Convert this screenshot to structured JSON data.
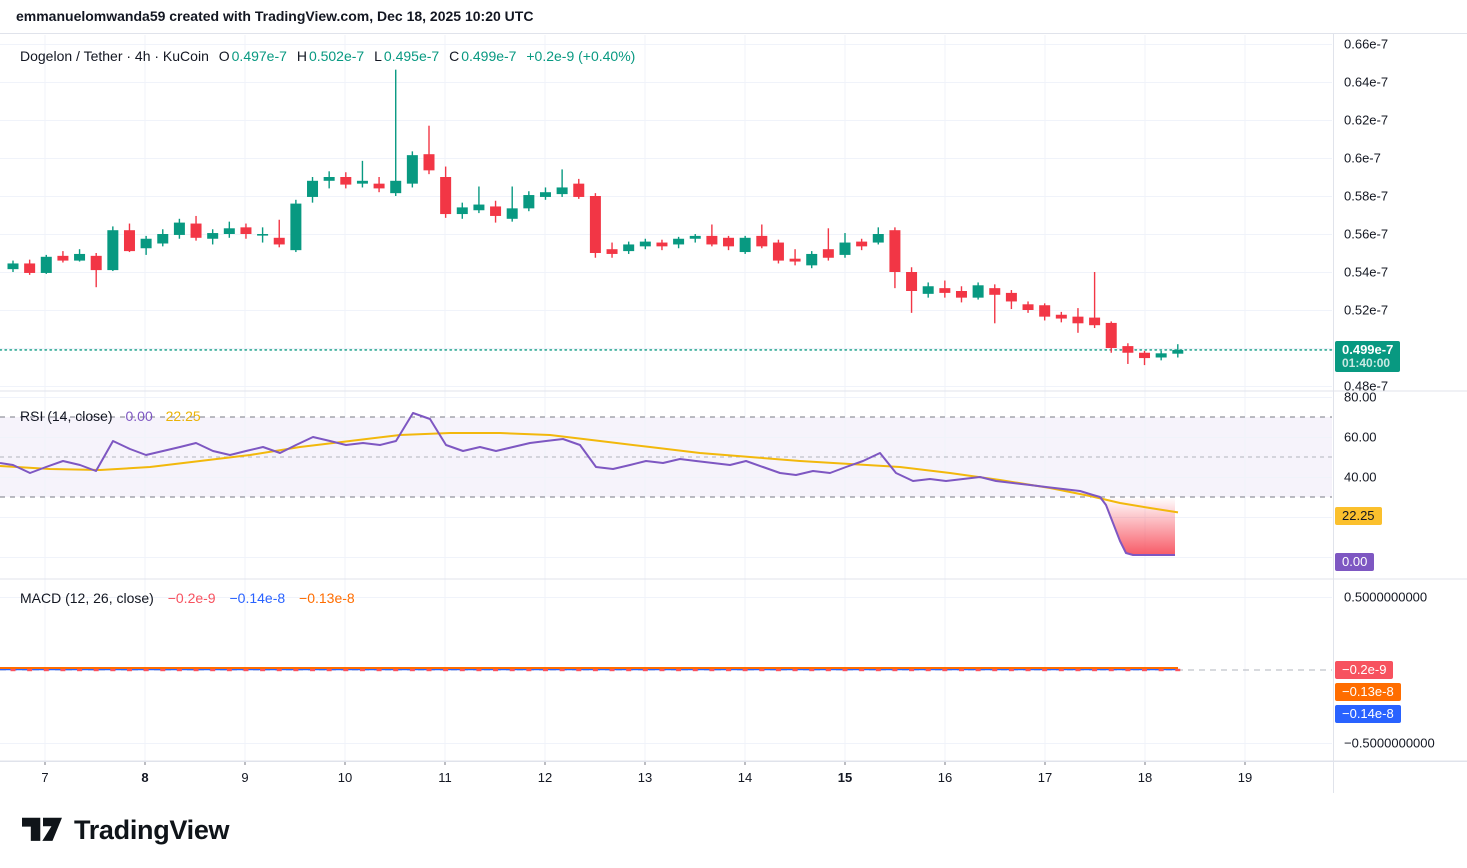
{
  "header": {
    "attribution": "emmanuelomwanda59 created with TradingView.com, Dec 18, 2025 10:20 UTC"
  },
  "symbol_legend": {
    "title": "Dogelon / Tether · 4h · KuCoin",
    "o_label": "O",
    "o_value": "0.497e-7",
    "h_label": "H",
    "h_value": "0.502e-7",
    "l_label": "L",
    "l_value": "0.495e-7",
    "c_label": "C",
    "c_value": "0.499e-7",
    "change": "+0.2e-9 (+0.40%)"
  },
  "rsi_legend": {
    "title": "RSI (14, close)",
    "value": "0.00",
    "ma_value": "22.25"
  },
  "macd_legend": {
    "title": "MACD (12, 26, close)",
    "hist_value": "−0.2e-9",
    "macd_value": "−0.14e-8",
    "signal_value": "−0.13e-8"
  },
  "badges": {
    "price": {
      "text": "0.499e-7",
      "countdown": "01:40:00"
    },
    "rsi_ma": "22.25",
    "rsi": "0.00",
    "macd_hist": "−0.2e-9",
    "macd_signal": "−0.13e-8",
    "macd_line": "−0.14e-8"
  },
  "footer": {
    "logo_text": "TradingView"
  },
  "colors": {
    "up": "#089981",
    "down": "#f23645",
    "accent_teal": "#089981",
    "rsi_line": "#7e57c2",
    "rsi_ma": "#f2b80c",
    "rsi_badge_bg": "#fbc02d",
    "rsi_value_badge_bg": "#7e57c2",
    "oversold_fill": "#f7525f",
    "macd_line": "#2962ff",
    "macd_signal": "#ff6d00",
    "macd_hist": "#f7525f",
    "hist_badge_bg": "#f7525f",
    "signal_badge_bg": "#ff6d00",
    "line_badge_bg": "#2962ff",
    "grid": "#f0f3fa",
    "border": "#e0e3eb",
    "text": "#131722",
    "dashed_level": "#787b86",
    "mid_level": "#b2b5be"
  },
  "chart_data": {
    "type": "candlestick",
    "title": "Dogelon / Tether · 4h · KuCoin",
    "interval": "4h",
    "price_unit": "e-7",
    "ohlc_current": {
      "open": "0.497e-7",
      "high": "0.502e-7",
      "low": "0.495e-7",
      "close": "0.499e-7",
      "change": "+0.2e-9",
      "change_pct": "+0.40%"
    },
    "price_axis": {
      "min": 0.48,
      "max": 0.66,
      "labels": [
        "0.66e-7",
        "0.64e-7",
        "0.62e-7",
        "0.6e-7",
        "0.58e-7",
        "0.56e-7",
        "0.54e-7",
        "0.52e-7",
        "0.48e-7"
      ]
    },
    "time_axis": {
      "labels": [
        {
          "text": "7",
          "bold": false
        },
        {
          "text": "8",
          "bold": true
        },
        {
          "text": "9",
          "bold": false
        },
        {
          "text": "10",
          "bold": false
        },
        {
          "text": "11",
          "bold": false
        },
        {
          "text": "12",
          "bold": false
        },
        {
          "text": "13",
          "bold": false
        },
        {
          "text": "14",
          "bold": false
        },
        {
          "text": "15",
          "bold": true
        },
        {
          "text": "16",
          "bold": false
        },
        {
          "text": "17",
          "bold": false
        },
        {
          "text": "18",
          "bold": false
        },
        {
          "text": "19",
          "bold": false
        }
      ]
    },
    "candles": [
      [
        0.5415,
        0.546,
        0.54,
        0.5445
      ],
      [
        0.5445,
        0.5465,
        0.5385,
        0.5395
      ],
      [
        0.5395,
        0.549,
        0.539,
        0.548
      ],
      [
        0.5485,
        0.551,
        0.545,
        0.546
      ],
      [
        0.546,
        0.552,
        0.5455,
        0.5495
      ],
      [
        0.5485,
        0.55,
        0.532,
        0.541
      ],
      [
        0.541,
        0.564,
        0.5405,
        0.562
      ],
      [
        0.562,
        0.5655,
        0.5505,
        0.551
      ],
      [
        0.5525,
        0.559,
        0.549,
        0.5575
      ],
      [
        0.555,
        0.5625,
        0.5535,
        0.56
      ],
      [
        0.5595,
        0.568,
        0.5575,
        0.566
      ],
      [
        0.5655,
        0.5695,
        0.5565,
        0.558
      ],
      [
        0.5575,
        0.5625,
        0.5545,
        0.5605
      ],
      [
        0.56,
        0.5665,
        0.558,
        0.563
      ],
      [
        0.5635,
        0.5655,
        0.5575,
        0.56
      ],
      [
        0.56,
        0.5635,
        0.5555,
        0.56
      ],
      [
        0.558,
        0.5675,
        0.553,
        0.5545
      ],
      [
        0.5515,
        0.578,
        0.5505,
        0.576
      ],
      [
        0.5795,
        0.59,
        0.5765,
        0.588
      ],
      [
        0.588,
        0.593,
        0.584,
        0.59
      ],
      [
        0.59,
        0.5925,
        0.584,
        0.586
      ],
      [
        0.5865,
        0.5985,
        0.5845,
        0.588
      ],
      [
        0.5865,
        0.59,
        0.582,
        0.584
      ],
      [
        0.5815,
        0.6465,
        0.58,
        0.588
      ],
      [
        0.5865,
        0.6035,
        0.5845,
        0.6015
      ],
      [
        0.602,
        0.617,
        0.5915,
        0.5935
      ],
      [
        0.59,
        0.5955,
        0.5685,
        0.5705
      ],
      [
        0.5705,
        0.5765,
        0.568,
        0.574
      ],
      [
        0.5725,
        0.585,
        0.571,
        0.5755
      ],
      [
        0.5745,
        0.5775,
        0.566,
        0.5695
      ],
      [
        0.568,
        0.585,
        0.5665,
        0.5735
      ],
      [
        0.5735,
        0.5825,
        0.572,
        0.5805
      ],
      [
        0.5795,
        0.5845,
        0.578,
        0.582
      ],
      [
        0.581,
        0.594,
        0.5795,
        0.5845
      ],
      [
        0.5865,
        0.589,
        0.5785,
        0.5795
      ],
      [
        0.58,
        0.5815,
        0.5475,
        0.55
      ],
      [
        0.552,
        0.5555,
        0.5475,
        0.5495
      ],
      [
        0.551,
        0.556,
        0.5495,
        0.5545
      ],
      [
        0.5535,
        0.5575,
        0.552,
        0.556
      ],
      [
        0.5555,
        0.557,
        0.5515,
        0.5535
      ],
      [
        0.5545,
        0.5585,
        0.5525,
        0.5575
      ],
      [
        0.5575,
        0.56,
        0.5555,
        0.559
      ],
      [
        0.559,
        0.565,
        0.5535,
        0.5545
      ],
      [
        0.558,
        0.559,
        0.5515,
        0.5535
      ],
      [
        0.5505,
        0.559,
        0.5495,
        0.558
      ],
      [
        0.559,
        0.565,
        0.5525,
        0.5535
      ],
      [
        0.5555,
        0.557,
        0.5445,
        0.546
      ],
      [
        0.547,
        0.552,
        0.5435,
        0.5455
      ],
      [
        0.5435,
        0.551,
        0.542,
        0.5495
      ],
      [
        0.552,
        0.563,
        0.546,
        0.5475
      ],
      [
        0.549,
        0.5605,
        0.5475,
        0.5555
      ],
      [
        0.556,
        0.5575,
        0.5515,
        0.5535
      ],
      [
        0.5555,
        0.5635,
        0.5545,
        0.56
      ],
      [
        0.562,
        0.5635,
        0.5315,
        0.54
      ],
      [
        0.54,
        0.5425,
        0.5185,
        0.53
      ],
      [
        0.5285,
        0.5345,
        0.5265,
        0.5325
      ],
      [
        0.5315,
        0.5355,
        0.5265,
        0.529
      ],
      [
        0.53,
        0.5325,
        0.524,
        0.5265
      ],
      [
        0.5265,
        0.5345,
        0.5255,
        0.533
      ],
      [
        0.5315,
        0.5335,
        0.513,
        0.528
      ],
      [
        0.529,
        0.5305,
        0.5205,
        0.5245
      ],
      [
        0.523,
        0.5245,
        0.5185,
        0.52
      ],
      [
        0.5225,
        0.5235,
        0.5145,
        0.5165
      ],
      [
        0.5175,
        0.519,
        0.5135,
        0.5155
      ],
      [
        0.5165,
        0.521,
        0.508,
        0.513
      ],
      [
        0.516,
        0.54,
        0.5105,
        0.512
      ],
      [
        0.5132,
        0.514,
        0.4975,
        0.5
      ],
      [
        0.501,
        0.5025,
        0.4916,
        0.4975
      ],
      [
        0.4975,
        0.4985,
        0.491,
        0.4947
      ],
      [
        0.495,
        0.4985,
        0.4935,
        0.4972
      ],
      [
        0.497,
        0.502,
        0.495,
        0.499
      ]
    ],
    "rsi_panel": {
      "title": "RSI (14, close)",
      "value": 0.0,
      "ma": 22.25,
      "upper_band": 70,
      "middle": 50,
      "lower_band": 30,
      "axis_labels": [
        "80.00",
        "60.00",
        "40.00"
      ],
      "line": [
        [
          0,
          47
        ],
        [
          13,
          46
        ],
        [
          30,
          42
        ],
        [
          46,
          45
        ],
        [
          63,
          48
        ],
        [
          80,
          46
        ],
        [
          96,
          43
        ],
        [
          113,
          58
        ],
        [
          130,
          54
        ],
        [
          146,
          51
        ],
        [
          163,
          53
        ],
        [
          180,
          55
        ],
        [
          196,
          57
        ],
        [
          213,
          53
        ],
        [
          230,
          51
        ],
        [
          246,
          53
        ],
        [
          263,
          55
        ],
        [
          280,
          52
        ],
        [
          296,
          56
        ],
        [
          313,
          60
        ],
        [
          330,
          58
        ],
        [
          346,
          56
        ],
        [
          363,
          57
        ],
        [
          380,
          56
        ],
        [
          396,
          58
        ],
        [
          413,
          72
        ],
        [
          430,
          69
        ],
        [
          446,
          56
        ],
        [
          463,
          53
        ],
        [
          480,
          55
        ],
        [
          496,
          53
        ],
        [
          513,
          55
        ],
        [
          530,
          57
        ],
        [
          546,
          58
        ],
        [
          563,
          59
        ],
        [
          580,
          56
        ],
        [
          596,
          45
        ],
        [
          613,
          44
        ],
        [
          630,
          46
        ],
        [
          646,
          48
        ],
        [
          663,
          47
        ],
        [
          680,
          49
        ],
        [
          696,
          48
        ],
        [
          713,
          47
        ],
        [
          730,
          46
        ],
        [
          746,
          48
        ],
        [
          763,
          45
        ],
        [
          780,
          42
        ],
        [
          796,
          41
        ],
        [
          813,
          43
        ],
        [
          830,
          42
        ],
        [
          846,
          45
        ],
        [
          863,
          48
        ],
        [
          880,
          52
        ],
        [
          896,
          42
        ],
        [
          913,
          38
        ],
        [
          930,
          39
        ],
        [
          946,
          38
        ],
        [
          963,
          39
        ],
        [
          980,
          40
        ],
        [
          996,
          38
        ],
        [
          1013,
          37
        ],
        [
          1030,
          36
        ],
        [
          1046,
          35
        ],
        [
          1063,
          34
        ],
        [
          1080,
          33
        ],
        [
          1093,
          31
        ],
        [
          1100,
          30
        ],
        [
          1106,
          26
        ],
        [
          1113,
          17
        ],
        [
          1120,
          8
        ],
        [
          1126,
          2
        ],
        [
          1133,
          1
        ],
        [
          1175,
          1
        ]
      ],
      "ma_line": [
        [
          0,
          45.5
        ],
        [
          50,
          44
        ],
        [
          100,
          43.5
        ],
        [
          150,
          45
        ],
        [
          200,
          48
        ],
        [
          250,
          51
        ],
        [
          300,
          55
        ],
        [
          350,
          58
        ],
        [
          400,
          61
        ],
        [
          450,
          62
        ],
        [
          500,
          62
        ],
        [
          550,
          61
        ],
        [
          600,
          58
        ],
        [
          650,
          55
        ],
        [
          700,
          52
        ],
        [
          750,
          50
        ],
        [
          800,
          48
        ],
        [
          850,
          46.5
        ],
        [
          900,
          45
        ],
        [
          950,
          42
        ],
        [
          1000,
          38.5
        ],
        [
          1050,
          34.5
        ],
        [
          1090,
          30.5
        ],
        [
          1120,
          27
        ],
        [
          1150,
          24.5
        ],
        [
          1178,
          22.3
        ]
      ]
    },
    "macd_panel": {
      "title": "MACD (12, 26, close)",
      "histogram": "−0.2e-9",
      "macd": "−0.14e-8",
      "signal": "−0.13e-8",
      "axis_labels": [
        "0.5000000000",
        "−0.5000000000"
      ],
      "axis_values": [
        0.5,
        -0.5
      ]
    }
  }
}
